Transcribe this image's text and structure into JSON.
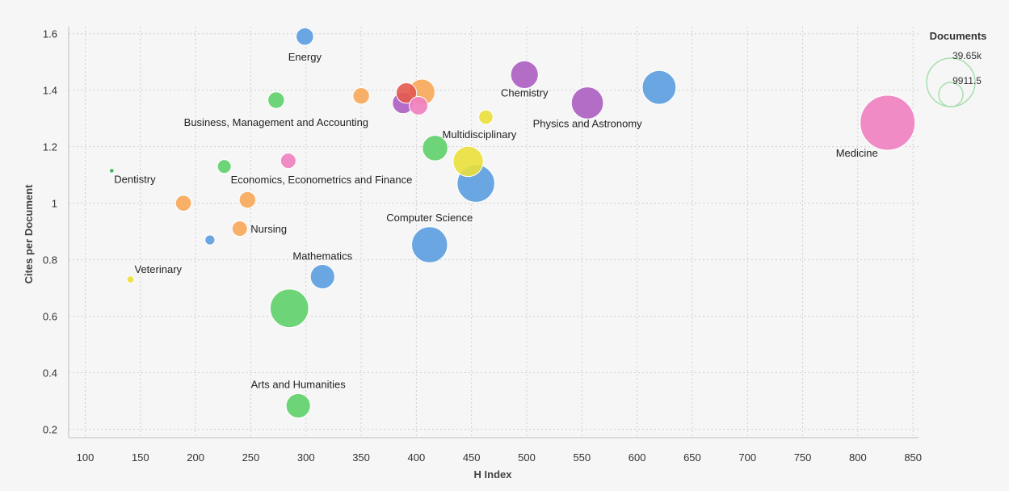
{
  "chart_data": {
    "type": "scatter",
    "xlabel": "H Index",
    "ylabel": "Cites per Document",
    "xlim": [
      85,
      855
    ],
    "ylim": [
      0.17,
      1.625
    ],
    "x_ticks": [
      100,
      150,
      200,
      250,
      300,
      350,
      400,
      450,
      500,
      550,
      600,
      650,
      700,
      750,
      800,
      850
    ],
    "y_ticks": [
      0.2,
      0.4,
      0.6,
      0.8,
      1,
      1.2,
      1.4,
      1.6
    ],
    "grid": true,
    "size_legend": {
      "title": "Documents",
      "max_label": "39.65k",
      "mid_label": "9911.5",
      "max_value": 39650,
      "mid_value": 9911.5
    },
    "points": [
      {
        "x": 299,
        "y": 1.59,
        "size": 4000,
        "color": "#5b9fe0",
        "label": "Energy"
      },
      {
        "x": 273,
        "y": 1.365,
        "size": 3600,
        "color": "#5fd06a",
        "label": "Business, Management and Accounting"
      },
      {
        "x": 350,
        "y": 1.38,
        "size": 3600,
        "color": "#f8a85a",
        "label": ""
      },
      {
        "x": 391,
        "y": 1.39,
        "size": 5500,
        "color": "#e35a4e",
        "label": ""
      },
      {
        "x": 405,
        "y": 1.393,
        "size": 9000,
        "color": "#f8a85a",
        "label": ""
      },
      {
        "x": 388,
        "y": 1.355,
        "size": 6000,
        "color": "#ad5ec2",
        "label": ""
      },
      {
        "x": 402,
        "y": 1.345,
        "size": 4500,
        "color": "#ef7fc0",
        "label": ""
      },
      {
        "x": 498,
        "y": 1.455,
        "size": 10000,
        "color": "#ad5ec2",
        "label": "Chemistry"
      },
      {
        "x": 463,
        "y": 1.305,
        "size": 2700,
        "color": "#ebe03c",
        "label": "Multidisciplinary"
      },
      {
        "x": 555,
        "y": 1.355,
        "size": 13500,
        "color": "#ad5ec2",
        "label": "Physics and Astronomy"
      },
      {
        "x": 620,
        "y": 1.41,
        "size": 15000,
        "color": "#5b9fe0",
        "label": ""
      },
      {
        "x": 827,
        "y": 1.285,
        "size": 39650,
        "color": "#ef7fc0",
        "label": "Medicine"
      },
      {
        "x": 124,
        "y": 1.115,
        "size": 300,
        "color": "#3ab55a",
        "label": "Dentistry"
      },
      {
        "x": 226,
        "y": 1.13,
        "size": 2500,
        "color": "#5fd06a",
        "label": "Economics, Econometrics and Finance"
      },
      {
        "x": 284,
        "y": 1.15,
        "size": 3100,
        "color": "#ef7fc0",
        "label": ""
      },
      {
        "x": 417,
        "y": 1.195,
        "size": 8500,
        "color": "#5fd06a",
        "label": ""
      },
      {
        "x": 447,
        "y": 1.148,
        "size": 12000,
        "color": "#ebe03c",
        "label": ""
      },
      {
        "x": 454,
        "y": 1.07,
        "size": 18500,
        "color": "#5b9fe0",
        "label": ""
      },
      {
        "x": 189,
        "y": 1.0,
        "size": 3300,
        "color": "#f8a85a",
        "label": ""
      },
      {
        "x": 247,
        "y": 1.012,
        "size": 3600,
        "color": "#f8a85a",
        "label": ""
      },
      {
        "x": 240,
        "y": 0.91,
        "size": 3100,
        "color": "#f8a85a",
        "label": "Nursing"
      },
      {
        "x": 213,
        "y": 0.87,
        "size": 1300,
        "color": "#5b9fe0",
        "label": ""
      },
      {
        "x": 412,
        "y": 0.853,
        "size": 17000,
        "color": "#5b9fe0",
        "label": "Computer Science"
      },
      {
        "x": 315,
        "y": 0.74,
        "size": 7800,
        "color": "#5b9fe0",
        "label": "Mathematics"
      },
      {
        "x": 141,
        "y": 0.73,
        "size": 700,
        "color": "#ebe03c",
        "label": "Veterinary"
      },
      {
        "x": 285,
        "y": 0.628,
        "size": 19500,
        "color": "#5fd06a",
        "label": ""
      },
      {
        "x": 293,
        "y": 0.283,
        "size": 7800,
        "color": "#5fd06a",
        "label": "Arts and Humanities"
      }
    ]
  }
}
